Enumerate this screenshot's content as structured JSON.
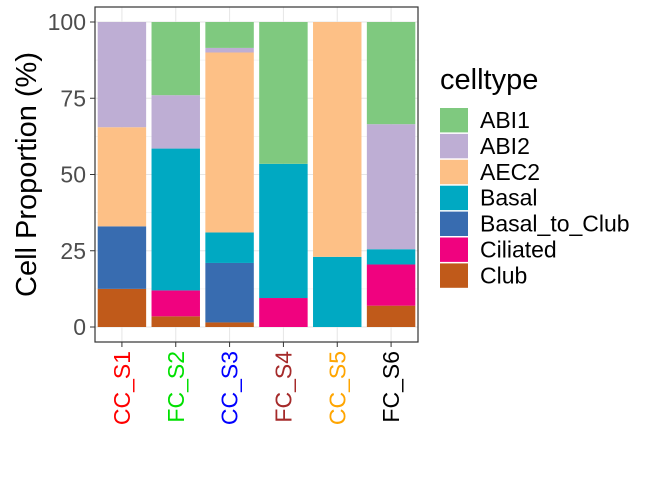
{
  "chart_data": {
    "type": "bar",
    "stacked": true,
    "ylabel": "Cell Proportion (%)",
    "xlabel": "",
    "ylim": [
      0,
      100
    ],
    "yticks": [
      0,
      25,
      50,
      75,
      100
    ],
    "grid": true,
    "legend_position": "right",
    "legend_title": "celltype",
    "categories": [
      "CC_S1",
      "FC_S2",
      "CC_S3",
      "FC_S4",
      "CC_S5",
      "FC_S6"
    ],
    "category_colors": [
      "#FF0000",
      "#00E000",
      "#0000FF",
      "#A52A2A",
      "#FFA500",
      "#000000"
    ],
    "series": [
      {
        "name": "Club",
        "color": "#C05A1A",
        "values": [
          12.5,
          3.5,
          1.5,
          0,
          0,
          7
        ]
      },
      {
        "name": "Ciliated",
        "color": "#F0027F",
        "values": [
          0,
          8.5,
          0,
          9.5,
          0,
          13.5
        ]
      },
      {
        "name": "Basal_to_Club",
        "color": "#386CB0",
        "values": [
          20.5,
          0,
          19.5,
          0,
          0,
          0
        ]
      },
      {
        "name": "Basal",
        "color": "#00A9C2",
        "values": [
          0,
          46.5,
          10,
          44,
          23,
          5
        ]
      },
      {
        "name": "AEC2",
        "color": "#FDC086",
        "values": [
          32.5,
          0,
          59,
          0,
          77,
          0
        ]
      },
      {
        "name": "ABI2",
        "color": "#BEAED4",
        "values": [
          34.5,
          17.5,
          1.5,
          0,
          0,
          41
        ]
      },
      {
        "name": "ABI1",
        "color": "#7FC97F",
        "values": [
          0,
          24,
          8.5,
          46.5,
          0,
          33.5
        ]
      }
    ],
    "legend_order": [
      "ABI1",
      "ABI2",
      "AEC2",
      "Basal",
      "Basal_to_Club",
      "Ciliated",
      "Club"
    ]
  }
}
